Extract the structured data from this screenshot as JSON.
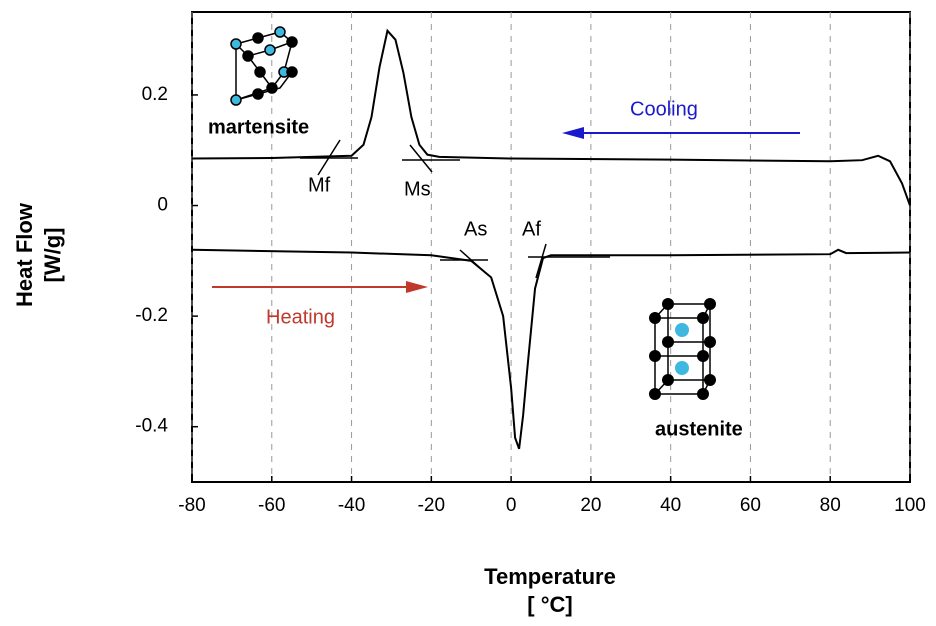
{
  "chart_data": {
    "type": "line",
    "xlabel": [
      "Temperature",
      "[ °C]"
    ],
    "ylabel": [
      "Heat Flow",
      "[W/g]"
    ],
    "xlim": [
      -80,
      100
    ],
    "ylim": [
      -0.5,
      0.35
    ],
    "xticks": [
      -80,
      -60,
      -40,
      -20,
      0,
      20,
      40,
      60,
      80,
      100
    ],
    "yticks": [
      -0.4,
      -0.2,
      0,
      0.2
    ],
    "grid": true,
    "series": [
      {
        "name": "Cooling",
        "color": "#000000",
        "x": [
          -80,
          -60,
          -40,
          -37,
          -35,
          -33,
          -31,
          -29,
          -27,
          -25,
          -23,
          -21,
          -18,
          0,
          40,
          80,
          88,
          92,
          95,
          98,
          100
        ],
        "values": [
          0.085,
          0.086,
          0.09,
          0.11,
          0.16,
          0.25,
          0.316,
          0.3,
          0.24,
          0.16,
          0.11,
          0.092,
          0.088,
          0.085,
          0.083,
          0.08,
          0.082,
          0.09,
          0.08,
          0.04,
          0.0
        ]
      },
      {
        "name": "Heating",
        "color": "#000000",
        "x": [
          -80,
          -40,
          -20,
          -10,
          -5,
          -2,
          0,
          1,
          2,
          3,
          4,
          6,
          8,
          10,
          40,
          80,
          82,
          84,
          100
        ],
        "values": [
          -0.08,
          -0.085,
          -0.09,
          -0.1,
          -0.13,
          -0.2,
          -0.33,
          -0.42,
          -0.44,
          -0.38,
          -0.3,
          -0.15,
          -0.095,
          -0.09,
          -0.09,
          -0.088,
          -0.08,
          -0.086,
          -0.085
        ]
      }
    ],
    "annotations": [
      "martensite",
      "Mf",
      "Ms",
      "As",
      "Af",
      "Cooling",
      "Heating",
      "austenite"
    ]
  }
}
